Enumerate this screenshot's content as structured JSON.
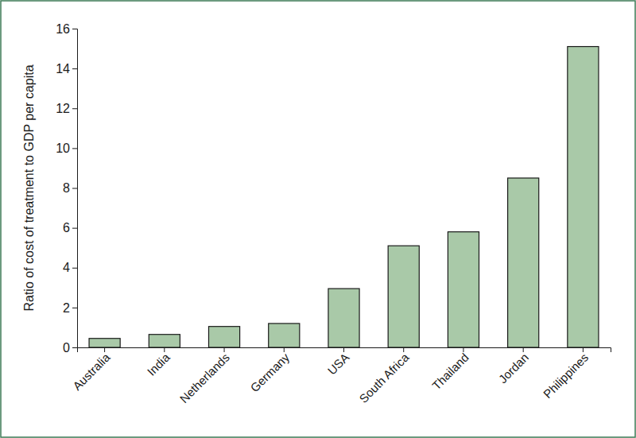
{
  "chart_data": {
    "type": "bar",
    "y_label": "Ratio of cost of treatment to GDP per capita",
    "categories": [
      "Australia",
      "India",
      "Netherlands",
      "Germany",
      "USA",
      "South Africa",
      "Thailand",
      "Jordan",
      "Philippines"
    ],
    "values": [
      0.45,
      0.65,
      1.05,
      1.2,
      2.95,
      5.1,
      5.8,
      8.5,
      15.1
    ],
    "color": "#a9c9a8",
    "ylim": [
      0,
      16
    ],
    "yticks": [
      0,
      2,
      4,
      6,
      8,
      10,
      12,
      14,
      16
    ],
    "grid": false
  }
}
